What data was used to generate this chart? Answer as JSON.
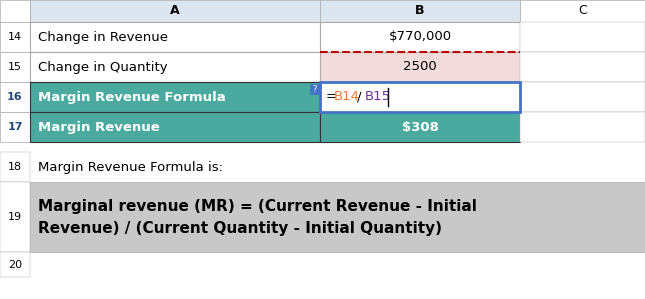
{
  "fig_width": 6.45,
  "fig_height": 2.99,
  "dpi": 100,
  "bg_color": "#ffffff",
  "col_header_bg": "#dce6f1",
  "teal_color": "#4BAAA0",
  "pink_bg": "#F2DCDB",
  "gray_bg": "#C8C8C8",
  "blue_outline": "#4472C4",
  "formula_orange": "#ED7D31",
  "formula_purple": "#7030A0",
  "formula_black": "#000000",
  "red_dash": "#C00000",
  "rows": [
    {
      "num": "14",
      "label": "Change in Revenue",
      "value": "$770,000",
      "label_bg": null,
      "value_bg": null,
      "label_bold": false,
      "value_bold": false,
      "value_align": "center"
    },
    {
      "num": "15",
      "label": "Change in Quantity",
      "value": "2500",
      "label_bg": null,
      "value_bg": "#F2DCDB",
      "label_bold": false,
      "value_bold": false,
      "value_align": "center"
    },
    {
      "num": "16",
      "label": "Margin Revenue Formula",
      "value": "=B14/B15",
      "label_bg": "#4BAAA0",
      "value_bg": "#ffffff",
      "label_bold": true,
      "value_bold": false,
      "value_align": "left",
      "value_special": true
    },
    {
      "num": "17",
      "label": "Margin Revenue",
      "value": "$308",
      "label_bg": "#4BAAA0",
      "value_bg": "#4BAAA0",
      "label_bold": true,
      "value_bold": true,
      "value_align": "center"
    }
  ],
  "row18_text": "Margin Revenue Formula is:",
  "row19_text_line1": "Marginal revenue (MR) = (Current Revenue - Initial",
  "row19_text_line2": "Revenue) / (Current Quantity - Initial Quantity)"
}
